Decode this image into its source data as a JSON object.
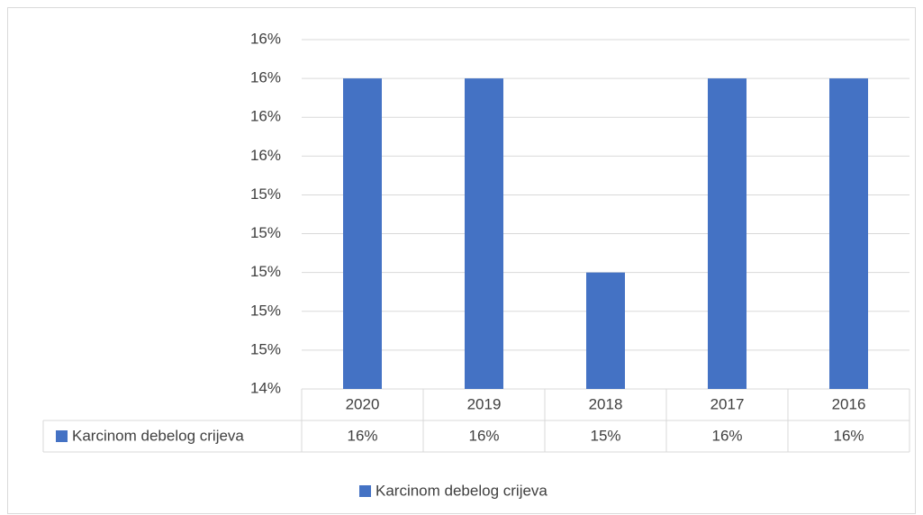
{
  "chart_data": {
    "type": "bar",
    "categories": [
      "2020",
      "2019",
      "2018",
      "2017",
      "2016"
    ],
    "series": [
      {
        "name": "Karcinom debelog crijeva",
        "color": "#4472c4",
        "values": [
          16.0,
          16.0,
          15.0,
          16.0,
          16.0
        ],
        "value_labels": [
          "16%",
          "16%",
          "15%",
          "16%",
          "16%"
        ]
      }
    ],
    "ylim": [
      14.4,
      16.2
    ],
    "yticks": [
      {
        "value": 14.4,
        "label": "14%"
      },
      {
        "value": 14.6,
        "label": "15%"
      },
      {
        "value": 14.8,
        "label": "15%"
      },
      {
        "value": 15.0,
        "label": "15%"
      },
      {
        "value": 15.2,
        "label": "15%"
      },
      {
        "value": 15.4,
        "label": "15%"
      },
      {
        "value": 15.6,
        "label": "16%"
      },
      {
        "value": 15.8,
        "label": "16%"
      },
      {
        "value": 16.0,
        "label": "16%"
      },
      {
        "value": 16.2,
        "label": "16%"
      }
    ],
    "grid": true
  }
}
